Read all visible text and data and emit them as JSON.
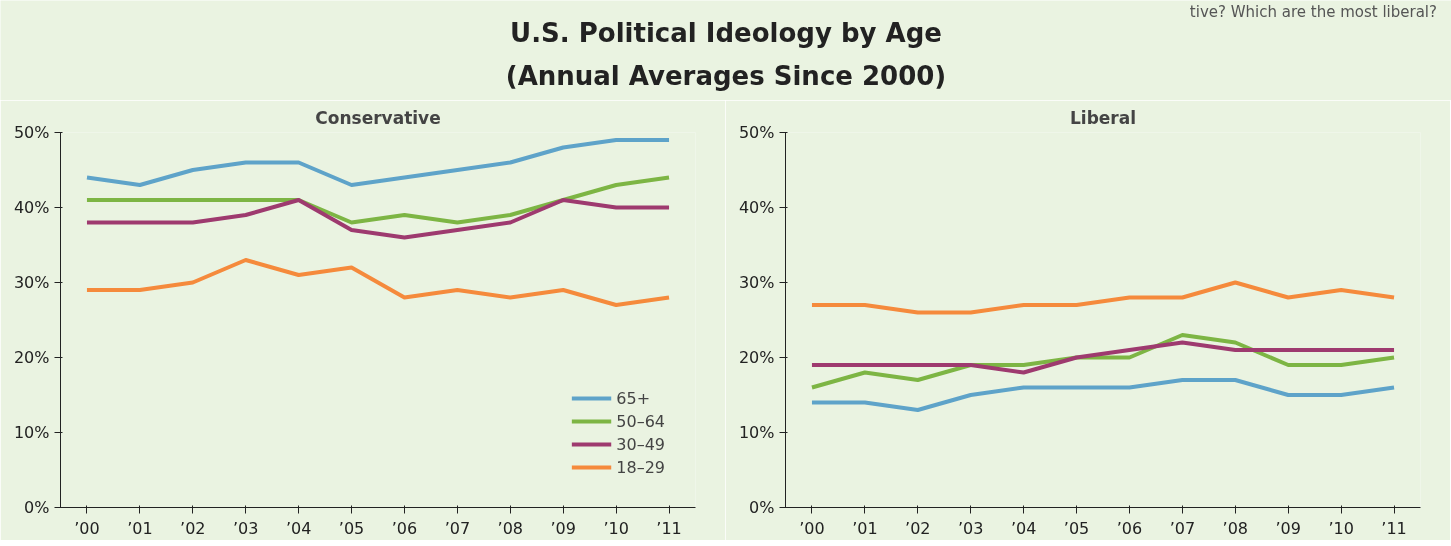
{
  "chart_data": [
    {
      "type": "other",
      "title": "U.S. Political Ideology by Age",
      "subtitle": "(Annual Averages Since 2000)",
      "annotations": [
        "tive? Which are the most liberal?"
      ]
    },
    {
      "type": "line",
      "title": "Conservative",
      "categories": [
        "’00",
        "’01",
        "’02",
        "’03",
        "’04",
        "’05",
        "’06",
        "’07",
        "’08",
        "’09",
        "’10",
        "’11"
      ],
      "ylim": [
        0,
        50
      ],
      "yticks": [
        {
          "value": 0,
          "label": "0%"
        },
        {
          "value": 10,
          "label": "10%"
        },
        {
          "value": 20,
          "label": "20%"
        },
        {
          "value": 30,
          "label": "30%"
        },
        {
          "value": 40,
          "label": "40%"
        },
        {
          "value": 50,
          "label": "50%"
        }
      ],
      "grid": false,
      "legend": "bottom right",
      "series": [
        {
          "name": "65+",
          "color": "#5ea3c9",
          "values": [
            44,
            43,
            45,
            46,
            46,
            43,
            44,
            45,
            46,
            48,
            49,
            49
          ]
        },
        {
          "name": "50–64",
          "color": "#7db544",
          "values": [
            41,
            41,
            41,
            41,
            41,
            38,
            39,
            38,
            39,
            41,
            43,
            44
          ]
        },
        {
          "name": "30–49",
          "color": "#9e3a6f",
          "values": [
            38,
            38,
            38,
            39,
            41,
            37,
            36,
            37,
            38,
            41,
            40,
            40
          ]
        },
        {
          "name": "18–29",
          "color": "#f58a3c",
          "values": [
            29,
            29,
            30,
            33,
            31,
            32,
            28,
            29,
            28,
            29,
            27,
            28
          ]
        }
      ]
    },
    {
      "type": "line",
      "title": "Liberal",
      "categories": [
        "’00",
        "’01",
        "’02",
        "’03",
        "’04",
        "’05",
        "’06",
        "’07",
        "’08",
        "’09",
        "’10",
        "’11"
      ],
      "ylim": [
        0,
        50
      ],
      "yticks": [
        {
          "value": 0,
          "label": "0%"
        },
        {
          "value": 10,
          "label": "10%"
        },
        {
          "value": 20,
          "label": "20%"
        },
        {
          "value": 30,
          "label": "30%"
        },
        {
          "value": 40,
          "label": "40%"
        },
        {
          "value": 50,
          "label": "50%"
        }
      ],
      "grid": false,
      "series": [
        {
          "color": "#5ea3c9",
          "values": [
            14,
            14,
            13,
            15,
            16,
            16,
            16,
            17,
            17,
            15,
            15,
            16
          ]
        },
        {
          "color": "#7db544",
          "values": [
            16,
            18,
            17,
            19,
            19,
            20,
            20,
            23,
            22,
            19,
            19,
            20
          ]
        },
        {
          "color": "#9e3a6f",
          "values": [
            19,
            19,
            19,
            19,
            18,
            20,
            21,
            22,
            21,
            21,
            21,
            21
          ]
        },
        {
          "color": "#f58a3c",
          "values": [
            27,
            27,
            26,
            26,
            27,
            27,
            28,
            28,
            30,
            28,
            29,
            28
          ]
        }
      ]
    }
  ]
}
